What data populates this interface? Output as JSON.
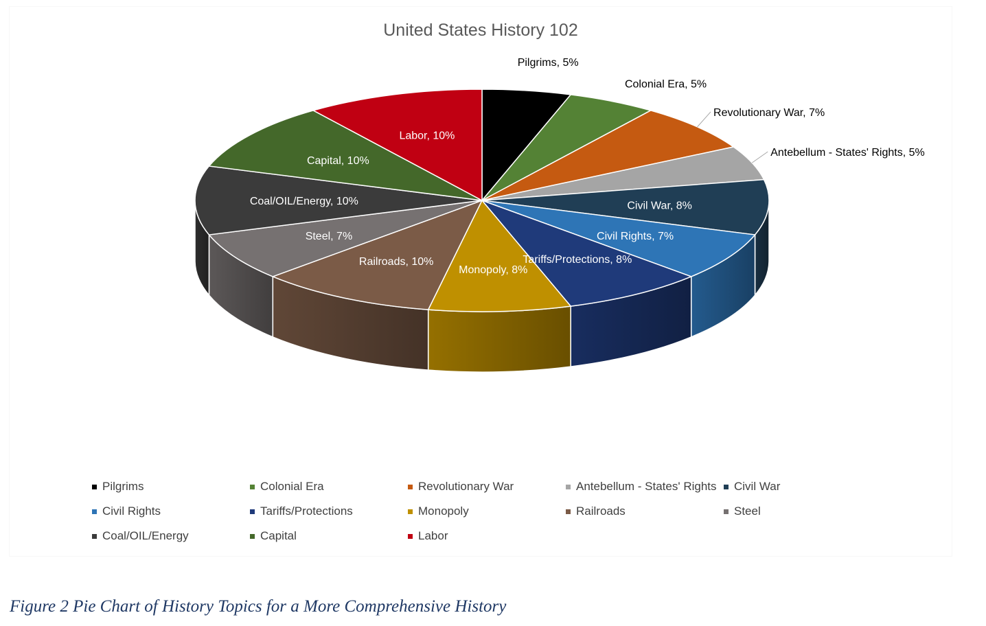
{
  "caption": "Figure 2 Pie Chart of History Topics for a More  Comprehensive History",
  "chart_data": {
    "type": "pie",
    "title": "United States History 102",
    "legend_position": "bottom",
    "label_format": "{name}, {value}%",
    "slices": [
      {
        "name": "Pilgrims",
        "value": 5,
        "color": "#000000",
        "label_color": "#000000"
      },
      {
        "name": "Colonial Era",
        "value": 5,
        "color": "#548235",
        "label_color": "#000000"
      },
      {
        "name": "Revolutionary War",
        "value": 7,
        "color": "#c55a11",
        "label_color": "#000000"
      },
      {
        "name": "Antebellum - States' Rights",
        "value": 5,
        "color": "#a5a5a5",
        "label_color": "#000000"
      },
      {
        "name": "Civil War",
        "value": 8,
        "color": "#203e55",
        "label_color": "#ffffff"
      },
      {
        "name": "Civil Rights",
        "value": 7,
        "color": "#2e75b6",
        "label_color": "#ffffff"
      },
      {
        "name": "Tariffs/Protections",
        "value": 8,
        "color": "#1f3a7a",
        "label_color": "#ffffff"
      },
      {
        "name": "Monopoly",
        "value": 8,
        "color": "#bf9000",
        "label_color": "#ffffff"
      },
      {
        "name": "Railroads",
        "value": 10,
        "color": "#7b5b47",
        "label_color": "#ffffff"
      },
      {
        "name": "Steel",
        "value": 7,
        "color": "#767171",
        "label_color": "#ffffff"
      },
      {
        "name": "Coal/OIL/Energy",
        "value": 10,
        "color": "#3b3b3b",
        "label_color": "#ffffff"
      },
      {
        "name": "Capital",
        "value": 10,
        "color": "#44682a",
        "label_color": "#ffffff"
      },
      {
        "name": "Labor",
        "value": 10,
        "color": "#c00012",
        "label_color": "#ffffff"
      }
    ]
  }
}
